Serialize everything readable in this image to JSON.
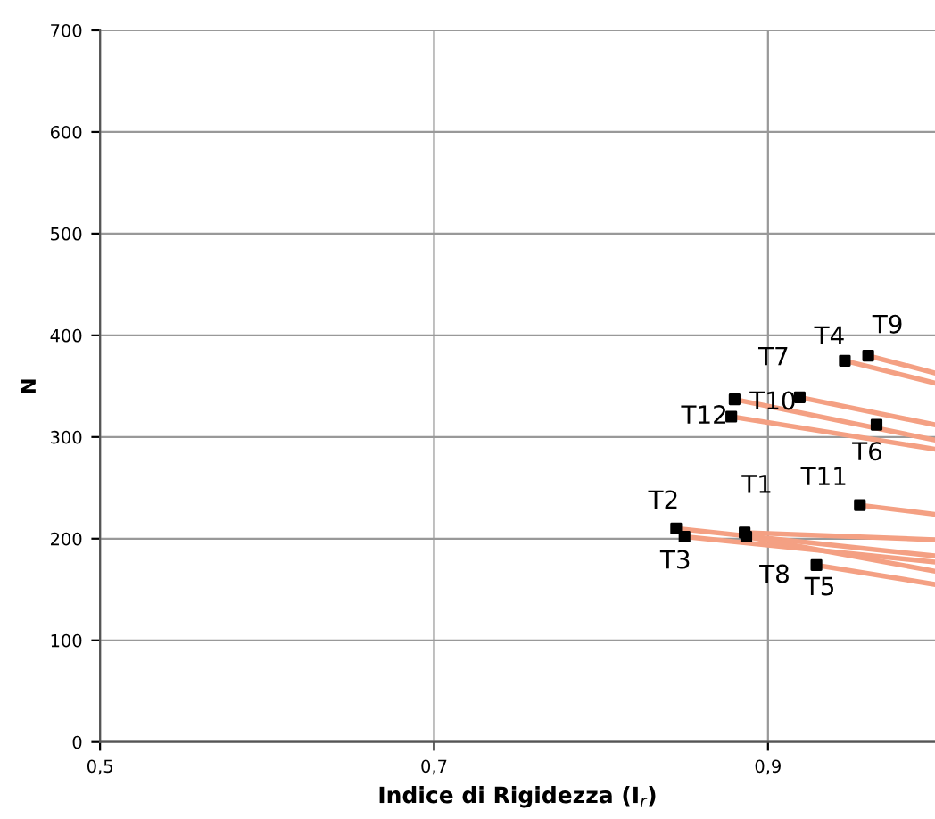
{
  "chart_data": {
    "type": "line",
    "xlabel": "Indice di Rigidezza (I$_{r}$)",
    "ylabel": "N",
    "xlim": [
      0.5,
      1.0
    ],
    "xticks": [
      {
        "value": 0.5,
        "label": "0,5"
      },
      {
        "value": 0.7,
        "label": "0,7"
      },
      {
        "value": 0.9,
        "label": "0,9"
      }
    ],
    "ylim": [
      0,
      700
    ],
    "yticks": [
      0,
      100,
      200,
      300,
      400,
      500,
      600,
      700
    ],
    "grid": true,
    "legend": false,
    "line_style": "solid",
    "series": [
      {
        "color": "#f4a083",
        "x": [
          0.946,
          1.0
        ],
        "values": [
          375,
          353
        ]
      },
      {
        "color": "#f4a083",
        "x": [
          0.96,
          1.0
        ],
        "values": [
          380,
          363
        ]
      },
      {
        "color": "#f4a083",
        "x": [
          0.919,
          1.0
        ],
        "values": [
          339,
          312
        ]
      },
      {
        "color": "#f4a083",
        "x": [
          0.88,
          1.0
        ],
        "values": [
          337,
          297
        ]
      },
      {
        "color": "#f4a083",
        "x": [
          0.878,
          1.0
        ],
        "values": [
          320,
          288
        ]
      },
      {
        "color": "#f4a083",
        "x": [
          0.955,
          1.0
        ],
        "values": [
          233,
          224
        ]
      },
      {
        "color": "#f4a083",
        "x": [
          0.845,
          1.0
        ],
        "values": [
          210,
          183
        ]
      },
      {
        "color": "#f4a083",
        "x": [
          0.85,
          1.0
        ],
        "values": [
          202,
          177
        ]
      },
      {
        "color": "#f4a083",
        "x": [
          0.886,
          1.0
        ],
        "values": [
          206,
          199
        ]
      },
      {
        "color": "#f4a083",
        "x": [
          0.887,
          1.0
        ],
        "values": [
          202,
          168
        ]
      },
      {
        "color": "#f4a083",
        "x": [
          0.929,
          1.0
        ],
        "values": [
          174,
          155
        ]
      },
      {
        "type": "scatter",
        "color": "#000000",
        "marker": "square",
        "x": [
          0.946,
          0.96,
          0.919,
          0.88,
          0.878,
          0.965,
          0.955,
          0.845,
          0.85,
          0.886,
          0.887,
          0.929
        ],
        "values": [
          375,
          380,
          339,
          337,
          320,
          312,
          233,
          210,
          202,
          206,
          202,
          174
        ]
      }
    ],
    "annotations": [
      {
        "text": "T4",
        "x": 0.946,
        "y": 375
      },
      {
        "text": "T9",
        "x": 0.96,
        "y": 380
      },
      {
        "text": "T7",
        "x": 0.88,
        "y": 337
      },
      {
        "text": "T10",
        "x": 0.919,
        "y": 339
      },
      {
        "text": "T12",
        "x": 0.878,
        "y": 320
      },
      {
        "text": "T6",
        "x": 0.965,
        "y": 312
      },
      {
        "text": "T11",
        "x": 0.955,
        "y": 233
      },
      {
        "text": "T1",
        "x": 0.886,
        "y": 206
      },
      {
        "text": "T2",
        "x": 0.845,
        "y": 210
      },
      {
        "text": "T3",
        "x": 0.85,
        "y": 202
      },
      {
        "text": "T8",
        "x": 0.887,
        "y": 202
      },
      {
        "text": "T5",
        "x": 0.929,
        "y": 174
      }
    ]
  }
}
